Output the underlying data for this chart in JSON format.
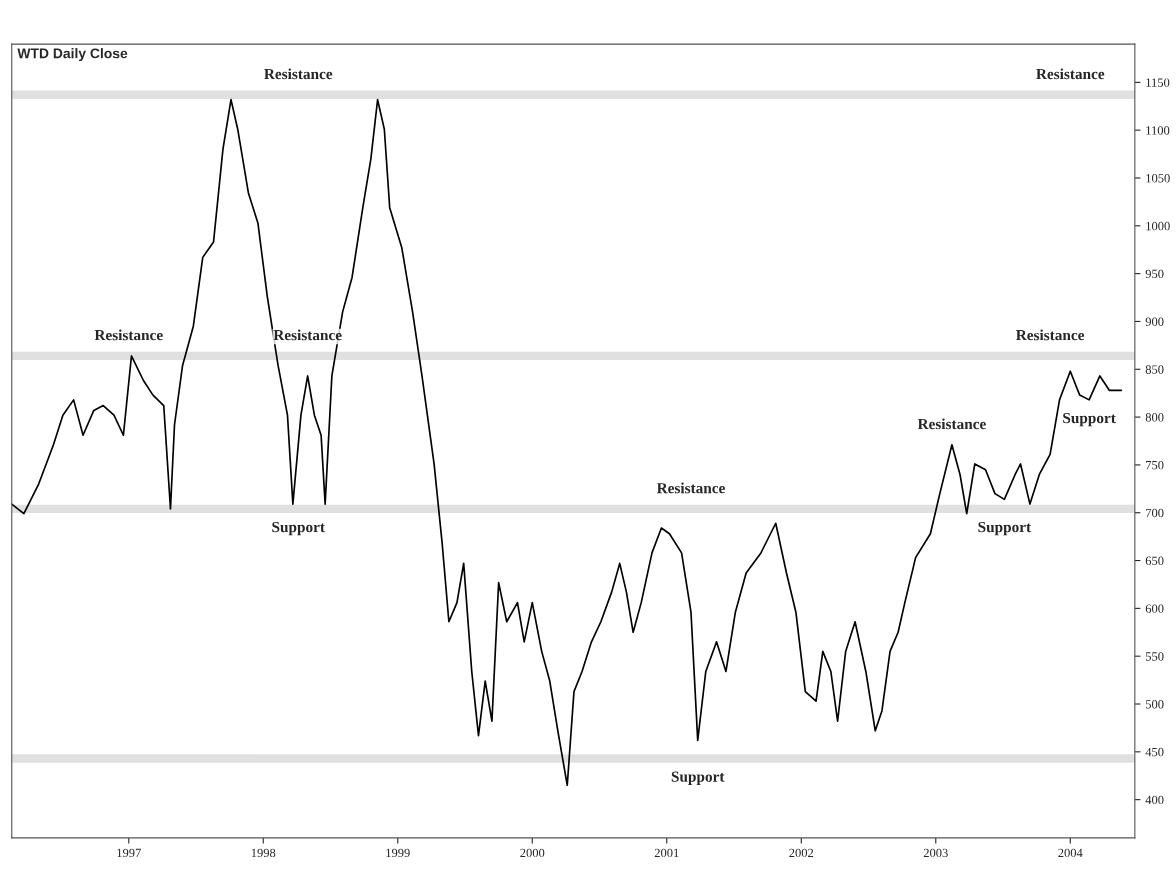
{
  "chart_data": {
    "type": "line",
    "title": "WTD Daily Close",
    "x": [
      1996.63,
      1996.72,
      1996.83,
      1996.94,
      1997.01,
      1997.09,
      1997.16,
      1997.24,
      1997.31,
      1997.39,
      1997.46,
      1997.52,
      1997.61,
      1997.68,
      1997.76,
      1997.81,
      1997.84,
      1997.9,
      1997.98,
      1998.05,
      1998.13,
      1998.2,
      1998.26,
      1998.31,
      1998.39,
      1998.46,
      1998.53,
      1998.61,
      1998.68,
      1998.72,
      1998.78,
      1998.83,
      1998.88,
      1998.93,
      1998.96,
      1999.01,
      1999.09,
      1999.16,
      1999.24,
      1999.3,
      1999.35,
      1999.4,
      1999.44,
      1999.53,
      1999.61,
      1999.68,
      1999.77,
      1999.83,
      1999.88,
      1999.94,
      1999.99,
      2000.05,
      2000.1,
      2000.15,
      2000.2,
      2000.25,
      2000.31,
      2000.39,
      2000.44,
      2000.5,
      2000.57,
      2000.63,
      2000.69,
      2000.76,
      2000.81,
      2000.87,
      2000.94,
      2001.01,
      2001.09,
      2001.15,
      2001.2,
      2001.25,
      2001.31,
      2001.39,
      2001.46,
      2001.52,
      2001.61,
      2001.68,
      2001.73,
      2001.79,
      2001.87,
      2001.94,
      2002.01,
      2002.09,
      2002.2,
      2002.31,
      2002.39,
      2002.46,
      2002.53,
      2002.61,
      2002.66,
      2002.72,
      2002.77,
      2002.83,
      2002.9,
      2002.98,
      2003.05,
      2003.1,
      2003.16,
      2003.22,
      2003.27,
      2003.35,
      2003.46,
      2003.53,
      2003.62,
      2003.68,
      2003.73,
      2003.79,
      2003.87,
      2003.94,
      2004.01,
      2004.09,
      2004.13,
      2004.2,
      2004.27,
      2004.35,
      2004.42,
      2004.5,
      2004.57,
      2004.64,
      2004.72,
      2004.79,
      2004.88
    ],
    "series": [
      {
        "color": "#000000",
        "values": [
          709,
          699,
          730,
          771,
          802,
          818,
          781,
          807,
          812,
          802,
          781,
          864,
          838,
          823,
          812,
          704,
          792,
          854,
          895,
          967,
          983,
          1080,
          1132,
          1101,
          1034,
          1003,
          926,
          854,
          802,
          709,
          802,
          843,
          802,
          781,
          709,
          843,
          910,
          946,
          1019,
          1070,
          1132,
          1101,
          1019,
          977,
          910,
          843,
          751,
          668,
          586,
          606,
          647,
          534,
          467,
          524,
          482,
          627,
          586,
          606,
          565,
          606,
          555,
          524,
          472,
          415,
          513,
          534,
          565,
          586,
          617,
          647,
          617,
          575,
          606,
          658,
          684,
          678,
          658,
          596,
          462,
          534,
          565,
          534,
          596,
          637,
          658,
          689,
          637,
          596,
          513,
          503,
          555,
          534,
          482,
          555,
          586,
          534,
          472,
          493,
          555,
          575,
          606,
          653,
          678,
          720,
          771,
          740,
          699,
          751,
          745,
          720,
          714,
          740,
          751,
          709,
          740,
          761,
          818,
          848,
          823,
          818,
          843,
          828,
          828
        ]
      }
    ],
    "xlim": [
      1996.63,
      2004.98
    ],
    "ylim": [
      360,
      1190
    ],
    "xticks": [
      {
        "value": 1997.5,
        "label": "1997"
      },
      {
        "value": 1998.5,
        "label": "1998"
      },
      {
        "value": 1999.5,
        "label": "1999"
      },
      {
        "value": 2000.5,
        "label": "2000"
      },
      {
        "value": 2001.5,
        "label": "2001"
      },
      {
        "value": 2002.5,
        "label": "2002"
      },
      {
        "value": 2003.5,
        "label": "2003"
      },
      {
        "value": 2004.5,
        "label": "2004"
      }
    ],
    "yticks": [
      400,
      450,
      500,
      550,
      600,
      650,
      700,
      750,
      800,
      850,
      900,
      950,
      1000,
      1050,
      1100,
      1150
    ],
    "ref_lines": [
      {
        "axis": "y",
        "value": 1137,
        "color": "#e0e0e0"
      },
      {
        "axis": "y",
        "value": 864,
        "color": "#e0e0e0"
      },
      {
        "axis": "y",
        "value": 704,
        "color": "#e0e0e0"
      },
      {
        "axis": "y",
        "value": 443,
        "color": "#e0e0e0"
      }
    ],
    "annotations": [
      {
        "text": "Resistance",
        "x": 1998.76,
        "y": 1137
      },
      {
        "text": "Resistance",
        "x": 2004.5,
        "y": 1137
      },
      {
        "text": "Resistance",
        "x": 1997.5,
        "y": 864
      },
      {
        "text": "Resistance",
        "x": 1998.83,
        "y": 864
      },
      {
        "text": "Resistance",
        "x": 2001.68,
        "y": 704
      },
      {
        "text": "Resistance",
        "x": 2003.62,
        "y": 771
      },
      {
        "text": "Resistance",
        "x": 2004.35,
        "y": 864
      },
      {
        "text": "Support",
        "x": 1998.76,
        "y": 704
      },
      {
        "text": "Support",
        "x": 2001.73,
        "y": 443
      },
      {
        "text": "Support",
        "x": 2004.01,
        "y": 704
      },
      {
        "text": "Support",
        "x": 2004.64,
        "y": 818
      }
    ],
    "grid": false,
    "legend": false,
    "line_style": "solid",
    "marker": "none"
  }
}
